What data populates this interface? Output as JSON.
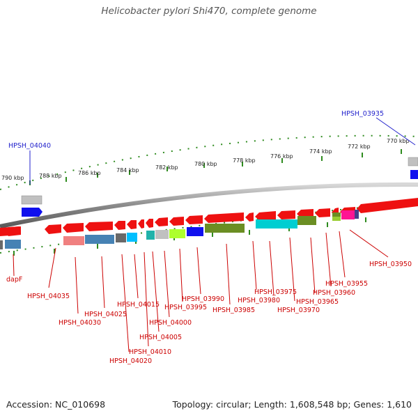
{
  "title": "Helicobacter pylori Shi470, complete genome",
  "footer": {
    "accession": "Accession: NC_010698",
    "summary": "Topology: circular; Length: 1,608,548 bp; Genes: 1,610"
  },
  "colors": {
    "backbone": "#8a8a8a",
    "tick": "#2e8b1e",
    "forward_label": "#2222cc",
    "reverse_label": "#cc0000",
    "arrow": "#ee1111"
  },
  "scale_labels": [
    "790 kbp",
    "788 kbp",
    "786 kbp",
    "784 kbp",
    "782 kbp",
    "780 kbp",
    "778 kbp",
    "776 kbp",
    "774 kbp",
    "772 kbp",
    "770 kbp"
  ],
  "forward_labels": [
    "HPSH_04040",
    "HPSH_03935"
  ],
  "reverse_labels": [
    "dapF",
    "HPSH_04035",
    "HPSH_04030",
    "HPSH_04025",
    "HPSH_04020",
    "HPSH_04015",
    "HPSH_04010",
    "HPSH_04005",
    "HPSH_04000",
    "HPSH_03995",
    "HPSH_03990",
    "HPSH_03985",
    "HPSH_03980",
    "HPSH_03975",
    "HPSH_03970",
    "HPSH_03965",
    "HPSH_03960",
    "HPSH_03955",
    "HPSH_03950"
  ],
  "cog_colors": [
    "#c0c0c0",
    "#1010ee",
    "#f08080",
    "#4682b4",
    "#696969",
    "#00bfff",
    "#20b2aa",
    "#adff2f",
    "#6b8e23",
    "#00ced1",
    "#9acd32",
    "#ff1493",
    "#483d8b"
  ]
}
